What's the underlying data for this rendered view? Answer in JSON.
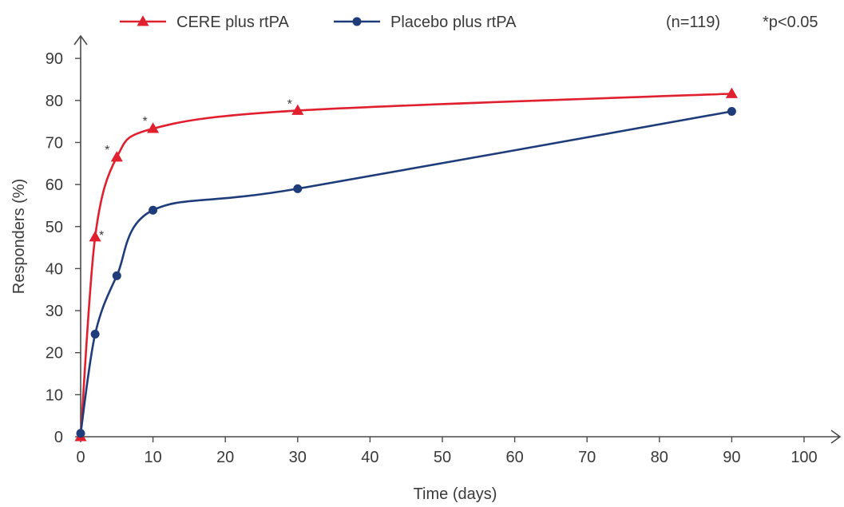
{
  "chart_data": {
    "type": "line",
    "title": "",
    "xlabel": "Time (days)",
    "ylabel": "Responders (%)",
    "xlim": [
      0,
      100
    ],
    "ylim": [
      0,
      90
    ],
    "x_ticks": [
      0,
      10,
      20,
      30,
      40,
      50,
      60,
      70,
      80,
      90,
      100
    ],
    "y_ticks": [
      0,
      10,
      20,
      30,
      40,
      50,
      60,
      70,
      80,
      90
    ],
    "grid": false,
    "legend_position": "top",
    "annotations": {
      "sample_size": "(n=119)",
      "significance": "*p<0.05",
      "marker": "*"
    },
    "series": [
      {
        "name": "CERE plus rtPA",
        "color": "#e0202e",
        "marker": "triangle",
        "x": [
          0,
          2,
          5,
          10,
          30,
          90
        ],
        "y": [
          0,
          47.5,
          66.5,
          73.3,
          77.6,
          81.6
        ],
        "significant": [
          false,
          true,
          true,
          true,
          true,
          false
        ]
      },
      {
        "name": "Placebo plus rtPA",
        "color": "#1f3c7a",
        "marker": "circle",
        "x": [
          0,
          2,
          5,
          10,
          30,
          90
        ],
        "y": [
          0.8,
          24.4,
          38.3,
          53.9,
          59.0,
          77.4
        ]
      }
    ]
  }
}
